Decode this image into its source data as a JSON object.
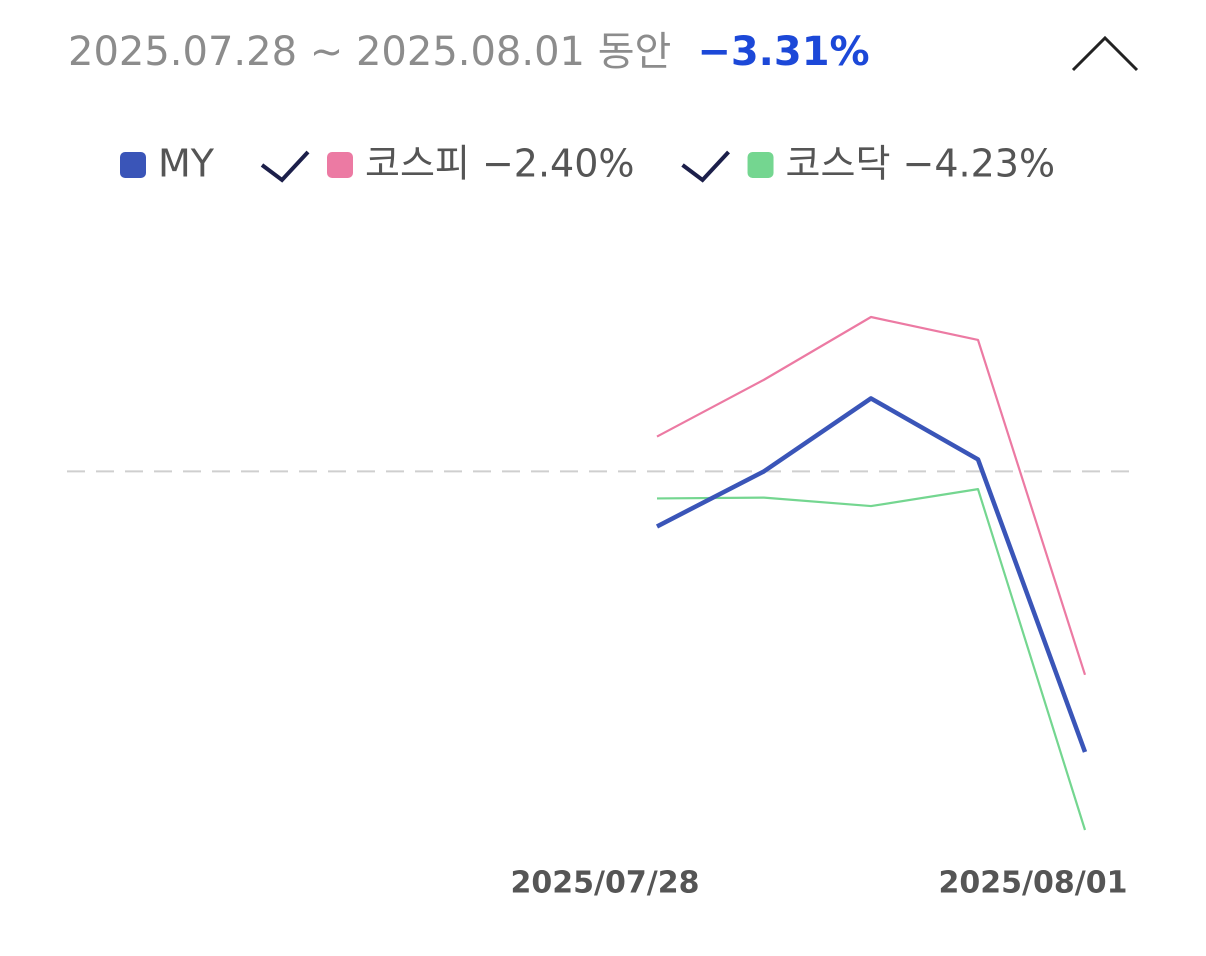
{
  "chart_data": {
    "type": "line",
    "title": "2025.07.28 ~ 2025.08.01 동안",
    "title_value": "−3.31%",
    "categories": [
      "2025/07/28",
      null,
      null,
      null,
      "2025/08/01"
    ],
    "series": [
      {
        "name": "MY",
        "color": "#3a55b8",
        "values": [
          -0.65,
          0.0,
          0.86,
          0.14,
          -3.31
        ]
      },
      {
        "name": "코스피 −2.40%",
        "color": "#ec7aa3",
        "values": [
          0.41,
          1.08,
          1.82,
          1.55,
          -2.4
        ]
      },
      {
        "name": "코스닥 −4.23%",
        "color": "#74d690",
        "values": [
          -0.32,
          -0.31,
          -0.41,
          -0.21,
          -4.23
        ]
      }
    ],
    "reference_line": 0
  }
}
